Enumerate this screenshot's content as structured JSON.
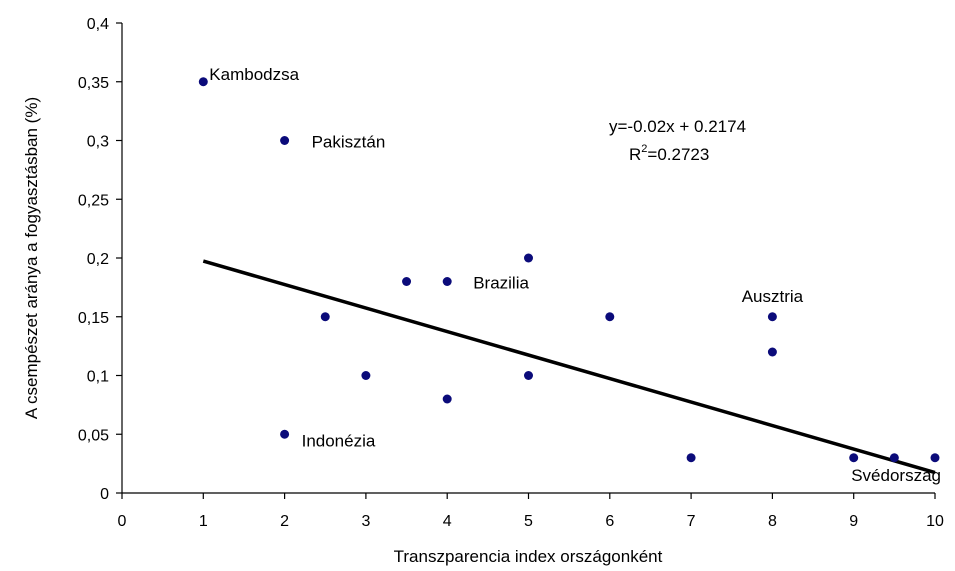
{
  "chart_data": {
    "type": "scatter",
    "xlabel": "Transzparencia index országonként",
    "ylabel": "A csempészet aránya a fogyasztásban (%)",
    "xlim": [
      0,
      10
    ],
    "ylim": [
      0,
      0.4
    ],
    "x_ticks": [
      0,
      1,
      2,
      3,
      4,
      5,
      6,
      7,
      8,
      9,
      10
    ],
    "x_tick_labels": [
      "0",
      "1",
      "2",
      "3",
      "4",
      "5",
      "6",
      "7",
      "8",
      "9",
      "10"
    ],
    "y_ticks": [
      0,
      0.05,
      0.1,
      0.15,
      0.2,
      0.25,
      0.3,
      0.35,
      0.4
    ],
    "y_tick_labels": [
      "0",
      "0,05",
      "0,1",
      "0,15",
      "0,2",
      "0,25",
      "0,3",
      "0,35",
      "0,4"
    ],
    "grid": false,
    "colors": {
      "points": "#0b0b7a",
      "trendline": "#000000"
    },
    "points": [
      {
        "x": 1,
        "y": 0.35,
        "label": "Kambodzsa"
      },
      {
        "x": 2,
        "y": 0.3,
        "label": "Pakisztán"
      },
      {
        "x": 2,
        "y": 0.05,
        "label": "Indonézia"
      },
      {
        "x": 2.5,
        "y": 0.15,
        "label": ""
      },
      {
        "x": 3,
        "y": 0.1,
        "label": ""
      },
      {
        "x": 3.5,
        "y": 0.18,
        "label": ""
      },
      {
        "x": 4,
        "y": 0.18,
        "label": "Brazilia"
      },
      {
        "x": 4,
        "y": 0.08,
        "label": ""
      },
      {
        "x": 5,
        "y": 0.2,
        "label": ""
      },
      {
        "x": 5,
        "y": 0.1,
        "label": ""
      },
      {
        "x": 6,
        "y": 0.15,
        "label": ""
      },
      {
        "x": 7,
        "y": 0.03,
        "label": ""
      },
      {
        "x": 8,
        "y": 0.15,
        "label": "Ausztria"
      },
      {
        "x": 8,
        "y": 0.12,
        "label": ""
      },
      {
        "x": 9,
        "y": 0.03,
        "label": ""
      },
      {
        "x": 9.5,
        "y": 0.03,
        "label": ""
      },
      {
        "x": 10,
        "y": 0.03,
        "label": "Svédország"
      }
    ],
    "trendline": {
      "slope": -0.02,
      "intercept": 0.2174,
      "x_range": [
        1,
        10
      ],
      "equation": "y=-0.02x + 0.2174",
      "r2_prefix": "R",
      "r2_superscript": "2",
      "r2_value": "=0.2723"
    }
  }
}
